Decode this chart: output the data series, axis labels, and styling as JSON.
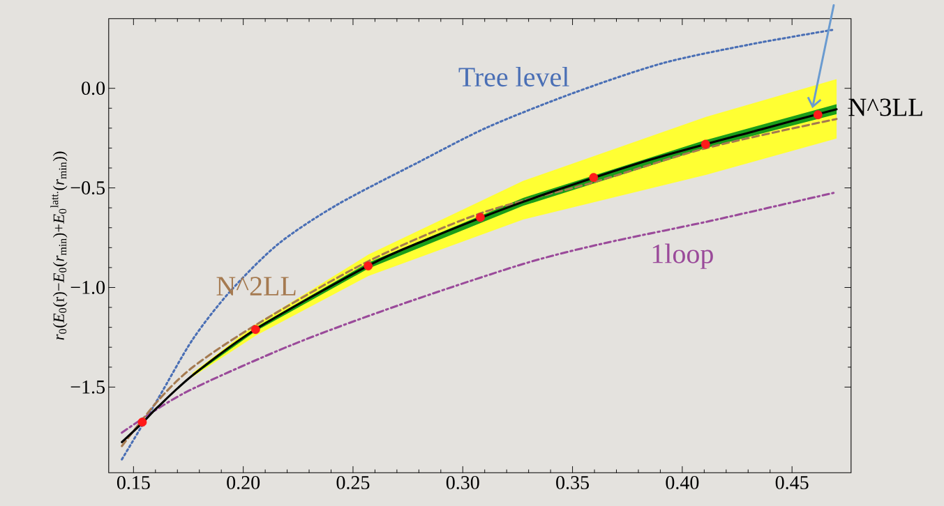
{
  "chart_data": {
    "type": "line",
    "ylabel": "*r*$_{0}$(*E*$_{0}$(r)−*E*$_{0}$(*r*$_{min}$)+*E*$_{0}$$^{latt.}$(*r*$_{min}$))",
    "xlim": [
      0.1387,
      0.4769
    ],
    "ylim": [
      -1.93,
      0.35
    ],
    "xticks": [
      {
        "value": 0.15,
        "label": "0.15"
      },
      {
        "value": 0.2,
        "label": "0.20"
      },
      {
        "value": 0.25,
        "label": "0.25"
      },
      {
        "value": 0.3,
        "label": "0.30"
      },
      {
        "value": 0.35,
        "label": "0.35"
      },
      {
        "value": 0.4,
        "label": "0.40"
      },
      {
        "value": 0.45,
        "label": "0.45"
      }
    ],
    "yticks": [
      {
        "value": -1.5,
        "label": "−1.5"
      },
      {
        "value": -1.0,
        "label": "−1.0"
      },
      {
        "value": -0.5,
        "label": "−0.5"
      },
      {
        "value": 0.0,
        "label": "0.0"
      }
    ],
    "series": [
      {
        "color": "#ffff33",
        "x": [
          0.1768,
          0.2056,
          0.257,
          0.3275,
          0.411,
          0.4703
        ],
        "values": [
          null,
          null,
          null,
          null,
          null,
          null
        ],
        "lower": [
          -1.45,
          -1.242,
          -0.942,
          -0.659,
          -0.434,
          -0.252
        ],
        "upper": [
          -1.43,
          -1.185,
          -0.835,
          -0.465,
          -0.143,
          0.046
        ]
      },
      {
        "color": "#1a9e1a",
        "x": [
          0.177,
          0.2056,
          0.257,
          0.3275,
          0.4106,
          0.4703
        ],
        "values": [
          null,
          null,
          null,
          null,
          null,
          null
        ],
        "lower": [
          -1.445,
          -1.22,
          -0.905,
          -0.59,
          -0.3,
          -0.13
        ],
        "upper": [
          -1.435,
          -1.2,
          -0.875,
          -0.55,
          -0.26,
          -0.08
        ]
      },
      {
        "name": "Tree level",
        "color": "#4a6fb5",
        "line_style": "dotted",
        "x": [
          0.1447,
          0.1611,
          0.177,
          0.194,
          0.2159,
          0.2427,
          0.28,
          0.3116,
          0.3513,
          0.3911,
          0.4308,
          0.4683
        ],
        "values": [
          -1.863,
          -1.56,
          -1.26,
          -1.02,
          -0.782,
          -0.585,
          -0.37,
          -0.194,
          -0.02,
          0.126,
          0.22,
          0.293
        ]
      },
      {
        "name": "1loop",
        "color": "#9a4a9a",
        "line_style": "dashdot",
        "x": [
          0.1447,
          0.1733,
          0.222,
          0.2706,
          0.3275,
          0.364,
          0.4127,
          0.4689
        ],
        "values": [
          -1.729,
          -1.529,
          -1.289,
          -1.09,
          -0.882,
          -0.779,
          -0.666,
          -0.525
        ]
      },
      {
        "name": "N^2LL",
        "color": "#a57a50",
        "line_style": "dashed",
        "x": [
          0.1447,
          0.1611,
          0.177,
          0.2056,
          0.257,
          0.308,
          0.3596,
          0.4106,
          0.4703
        ],
        "values": [
          -1.796,
          -1.569,
          -1.4,
          -1.189,
          -0.868,
          -0.628,
          -0.472,
          -0.301,
          -0.154
        ]
      },
      {
        "name": "N^3LL",
        "color": "#000000",
        "line_style": "solid",
        "x": [
          0.1447,
          0.154,
          0.1611,
          0.177,
          0.2056,
          0.257,
          0.283,
          0.3275,
          0.385,
          0.437,
          0.4703
        ],
        "values": [
          -1.776,
          -1.68,
          -1.6,
          -1.44,
          -1.21,
          -0.89,
          -0.762,
          -0.57,
          -0.36,
          -0.203,
          -0.105
        ]
      },
      {
        "type": "scatter",
        "color": "#ff1a1a",
        "x": [
          0.154,
          0.2056,
          0.2569,
          0.308,
          0.3596,
          0.4106,
          0.4618
        ],
        "values": [
          -1.676,
          -1.211,
          -0.892,
          -0.648,
          -0.448,
          -0.281,
          -0.133
        ]
      }
    ]
  }
}
